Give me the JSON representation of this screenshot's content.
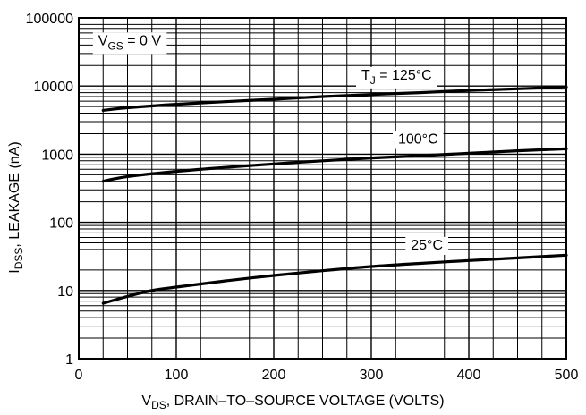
{
  "chart_data": {
    "type": "line",
    "x_scale": "linear",
    "y_scale": "log",
    "xlim": [
      0,
      500
    ],
    "ylim": [
      1,
      100000
    ],
    "x_ticks": [
      "0",
      "100",
      "200",
      "300",
      "400",
      "500"
    ],
    "y_ticks": [
      "1",
      "10",
      "100",
      "1000",
      "10000",
      "100000"
    ],
    "grid": true,
    "xlabel": {
      "sym": "V",
      "sub": "DS",
      "text": ", DRAIN–TO–SOURCE VOLTAGE (VOLTS)"
    },
    "ylabel": {
      "sym": "I",
      "sub": "DSS",
      "text": ", LEAKAGE (nA)"
    },
    "annotations": {
      "vgs": {
        "sym": "V",
        "sub": "GS",
        "text": " = 0 V"
      }
    },
    "series": [
      {
        "name": "T_J = 125°C",
        "label": {
          "sym": "T",
          "sub": "J",
          "text": " = 125°C"
        },
        "x": [
          25,
          50,
          100,
          150,
          200,
          250,
          300,
          350,
          400,
          450,
          500
        ],
        "y": [
          4400,
          4800,
          5400,
          5900,
          6400,
          7000,
          7500,
          8000,
          8600,
          9100,
          9700
        ]
      },
      {
        "name": "100°C",
        "label": {
          "text": "100°C"
        },
        "x": [
          25,
          50,
          100,
          150,
          200,
          250,
          300,
          350,
          400,
          450,
          500
        ],
        "y": [
          400,
          470,
          560,
          640,
          720,
          800,
          880,
          950,
          1030,
          1120,
          1200
        ]
      },
      {
        "name": "25°C",
        "label": {
          "text": "25°C"
        },
        "x": [
          25,
          50,
          75,
          100,
          150,
          200,
          250,
          300,
          350,
          400,
          450,
          500
        ],
        "y": [
          6.5,
          8.2,
          10,
          11.2,
          13.8,
          16.6,
          19.5,
          22.5,
          25,
          27.5,
          30,
          33
        ]
      }
    ]
  }
}
